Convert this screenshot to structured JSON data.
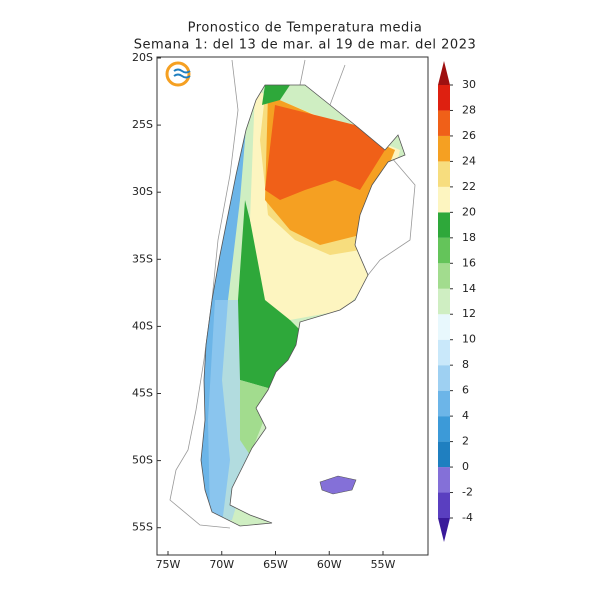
{
  "header": {
    "title": "Pronostico de Temperatura media",
    "subtitle": "Semana 1: del 13 de mar. al 19 de mar. del 2023"
  },
  "map": {
    "lat_labels": [
      "20S",
      "25S",
      "30S",
      "35S",
      "40S",
      "45S",
      "50S",
      "55S"
    ],
    "lon_labels": [
      "75W",
      "70W",
      "65W",
      "60W",
      "55W"
    ]
  },
  "colorbar": {
    "levels": [
      -4,
      -2,
      0,
      2,
      4,
      6,
      8,
      10,
      12,
      14,
      16,
      18,
      20,
      22,
      24,
      26,
      28,
      30
    ],
    "colors": [
      "#3a1a9a",
      "#5a3fc0",
      "#8470d8",
      "#1f7fc0",
      "#3c9ad8",
      "#6cb5e8",
      "#9ed0f2",
      "#c9e8fa",
      "#e8f8fd",
      "#cfeec2",
      "#a2dc8e",
      "#64c45a",
      "#2ea83a",
      "#fdf5c0",
      "#f7dd7e",
      "#f5a022",
      "#f06018",
      "#de2010",
      "#9e1010"
    ]
  }
}
